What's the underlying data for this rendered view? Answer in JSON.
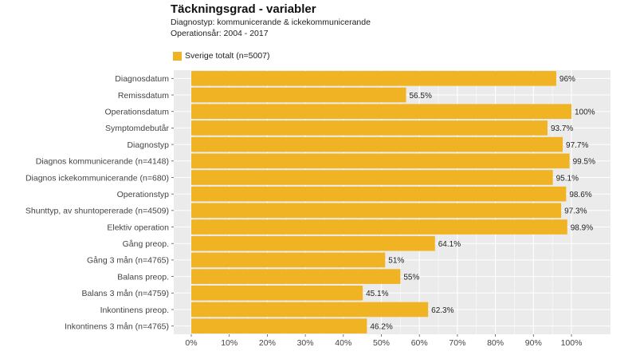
{
  "header": {
    "title": "Täckningsgrad - variabler",
    "subtitle_1": "Diagnostyp: kommunicerande & ickekommunicerande",
    "subtitle_2": "Operationsår: 2004 - 2017"
  },
  "colors": {
    "bar": "#F0B323",
    "panel": "#EBEBEB",
    "grid": "#FFFFFF"
  },
  "chart_data": {
    "type": "bar",
    "orientation": "horizontal",
    "title": "Täckningsgrad - variabler",
    "grid": true,
    "legend_position": "top-left",
    "xlim": [
      0,
      100
    ],
    "x_ticks": [
      0,
      10,
      20,
      30,
      40,
      50,
      60,
      70,
      80,
      90,
      100
    ],
    "x_tick_labels": [
      "0%",
      "10%",
      "20%",
      "30%",
      "40%",
      "50%",
      "60%",
      "70%",
      "80%",
      "90%",
      "100%"
    ],
    "categories": [
      "Diagnosdatum",
      "Remissdatum",
      "Operationsdatum",
      "Symptomdebutår",
      "Diagnostyp",
      "Diagnos kommunicerande (n=4148)",
      "Diagnos ickekommunicerande (n=680)",
      "Operationstyp",
      "Shunttyp, av shuntopererade (n=4509)",
      "Elektiv operation",
      "Gång preop.",
      "Gång 3 mån (n=4765)",
      "Balans preop.",
      "Balans 3 mån (n=4759)",
      "Inkontinens preop.",
      "Inkontinens 3 mån (n=4765)"
    ],
    "series": [
      {
        "name": "Sverige totalt (n=5007)",
        "values": [
          96,
          56.5,
          100,
          93.7,
          97.7,
          99.5,
          95.1,
          98.6,
          97.3,
          98.9,
          64.1,
          51,
          55,
          45.1,
          62.3,
          46.2
        ],
        "labels": [
          "96%",
          "56.5%",
          "100%",
          "93.7%",
          "97.7%",
          "99.5%",
          "95.1%",
          "98.6%",
          "97.3%",
          "98.9%",
          "64.1%",
          "51%",
          "55%",
          "45.1%",
          "62.3%",
          "46.2%"
        ]
      }
    ]
  }
}
